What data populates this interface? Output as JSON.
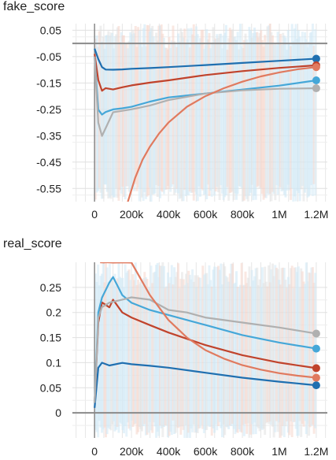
{
  "chart_data": [
    {
      "type": "line",
      "title": "fake_score",
      "xlim": [
        -120000,
        1260000
      ],
      "ylim": [
        -0.6,
        0.075
      ],
      "x_ticks": [
        0,
        200000,
        400000,
        600000,
        800000,
        1000000,
        1200000
      ],
      "x_tick_labels": [
        "0",
        "200k",
        "400k",
        "600k",
        "800k",
        "1M",
        "1.2M"
      ],
      "y_ticks": [
        0.05,
        -0.05,
        -0.15,
        -0.25,
        -0.35,
        -0.45,
        -0.55
      ],
      "y_tick_labels": [
        "0.05",
        "-0.05",
        "-0.15",
        "-0.25",
        "-0.35",
        "-0.45",
        "-0.55"
      ],
      "zero_line": 0,
      "grid": true,
      "series": [
        {
          "color": "#1f6fb0",
          "x": [
            0,
            20000,
            40000,
            60000,
            100000,
            150000,
            200000,
            300000,
            400000,
            600000,
            800000,
            1000000,
            1200000
          ],
          "y": [
            -0.02,
            -0.06,
            -0.09,
            -0.1,
            -0.1,
            -0.098,
            -0.097,
            -0.094,
            -0.09,
            -0.082,
            -0.074,
            -0.066,
            -0.058
          ]
        },
        {
          "color": "#c0432c",
          "x": [
            0,
            20000,
            40000,
            60000,
            100000,
            150000,
            200000,
            300000,
            400000,
            600000,
            800000,
            1000000,
            1200000
          ],
          "y": [
            -0.04,
            -0.14,
            -0.18,
            -0.17,
            -0.175,
            -0.165,
            -0.16,
            -0.15,
            -0.14,
            -0.12,
            -0.105,
            -0.093,
            -0.083
          ]
        },
        {
          "color": "#45a7d8",
          "x": [
            0,
            20000,
            40000,
            60000,
            100000,
            150000,
            200000,
            300000,
            400000,
            600000,
            800000,
            1000000,
            1200000
          ],
          "y": [
            -0.05,
            -0.25,
            -0.27,
            -0.26,
            -0.25,
            -0.245,
            -0.24,
            -0.22,
            -0.205,
            -0.19,
            -0.175,
            -0.16,
            -0.14
          ]
        },
        {
          "color": "#b0b0b0",
          "x": [
            0,
            20000,
            40000,
            60000,
            100000,
            150000,
            200000,
            300000,
            400000,
            600000,
            800000,
            1000000,
            1200000
          ],
          "y": [
            -0.05,
            -0.3,
            -0.35,
            -0.32,
            -0.26,
            -0.255,
            -0.25,
            -0.235,
            -0.215,
            -0.19,
            -0.178,
            -0.172,
            -0.17
          ]
        },
        {
          "color": "#e07a5f",
          "x": [
            180000,
            220000,
            260000,
            300000,
            350000,
            400000,
            500000,
            600000,
            700000,
            800000,
            900000,
            1000000,
            1100000,
            1200000
          ],
          "y": [
            -0.6,
            -0.51,
            -0.44,
            -0.39,
            -0.34,
            -0.3,
            -0.24,
            -0.2,
            -0.17,
            -0.145,
            -0.125,
            -0.11,
            -0.098,
            -0.09
          ]
        }
      ]
    },
    {
      "type": "line",
      "title": "real_score",
      "xlim": [
        -120000,
        1260000
      ],
      "ylim": [
        -0.05,
        0.3
      ],
      "x_ticks": [
        0,
        200000,
        400000,
        600000,
        800000,
        1000000,
        1200000
      ],
      "x_tick_labels": [
        "0",
        "200k",
        "400k",
        "600k",
        "800k",
        "1M",
        "1.2M"
      ],
      "y_ticks": [
        0.25,
        0.2,
        0.15,
        0.1,
        0.05,
        0
      ],
      "y_tick_labels": [
        "0.25",
        "0.2",
        "0.15",
        "0.1",
        "0.05",
        "0"
      ],
      "zero_line": 0,
      "grid": true,
      "series": [
        {
          "color": "#1f6fb0",
          "x": [
            0,
            20000,
            40000,
            80000,
            150000,
            200000,
            300000,
            400000,
            600000,
            800000,
            1000000,
            1200000
          ],
          "y": [
            0.01,
            0.09,
            0.1,
            0.095,
            0.1,
            0.097,
            0.094,
            0.09,
            0.08,
            0.07,
            0.062,
            0.055
          ]
        },
        {
          "color": "#c0432c",
          "x": [
            0,
            20000,
            40000,
            80000,
            100000,
            150000,
            200000,
            300000,
            400000,
            600000,
            800000,
            1000000,
            1200000
          ],
          "y": [
            0.02,
            0.18,
            0.22,
            0.21,
            0.225,
            0.2,
            0.19,
            0.175,
            0.16,
            0.135,
            0.115,
            0.1,
            0.089
          ]
        },
        {
          "color": "#45a7d8",
          "x": [
            0,
            20000,
            40000,
            80000,
            100000,
            150000,
            200000,
            300000,
            400000,
            600000,
            800000,
            1000000,
            1200000
          ],
          "y": [
            0.02,
            0.2,
            0.23,
            0.26,
            0.27,
            0.235,
            0.22,
            0.205,
            0.195,
            0.175,
            0.155,
            0.14,
            0.128
          ]
        },
        {
          "color": "#b0b0b0",
          "x": [
            0,
            20000,
            40000,
            80000,
            150000,
            200000,
            300000,
            400000,
            500000,
            600000,
            800000,
            1000000,
            1200000
          ],
          "y": [
            0.02,
            0.19,
            0.21,
            0.22,
            0.225,
            0.23,
            0.225,
            0.205,
            0.2,
            0.19,
            0.18,
            0.17,
            0.158
          ]
        },
        {
          "color": "#e07a5f",
          "x": [
            30000,
            50000,
            60000,
            100000,
            150000,
            200000,
            300000,
            400000,
            500000,
            600000,
            700000,
            800000,
            900000,
            1000000,
            1100000,
            1200000
          ],
          "y": [
            0.3,
            0.3,
            0.3,
            0.3,
            0.3,
            0.3,
            0.235,
            0.185,
            0.15,
            0.125,
            0.108,
            0.095,
            0.086,
            0.079,
            0.074,
            0.07
          ]
        }
      ]
    }
  ]
}
